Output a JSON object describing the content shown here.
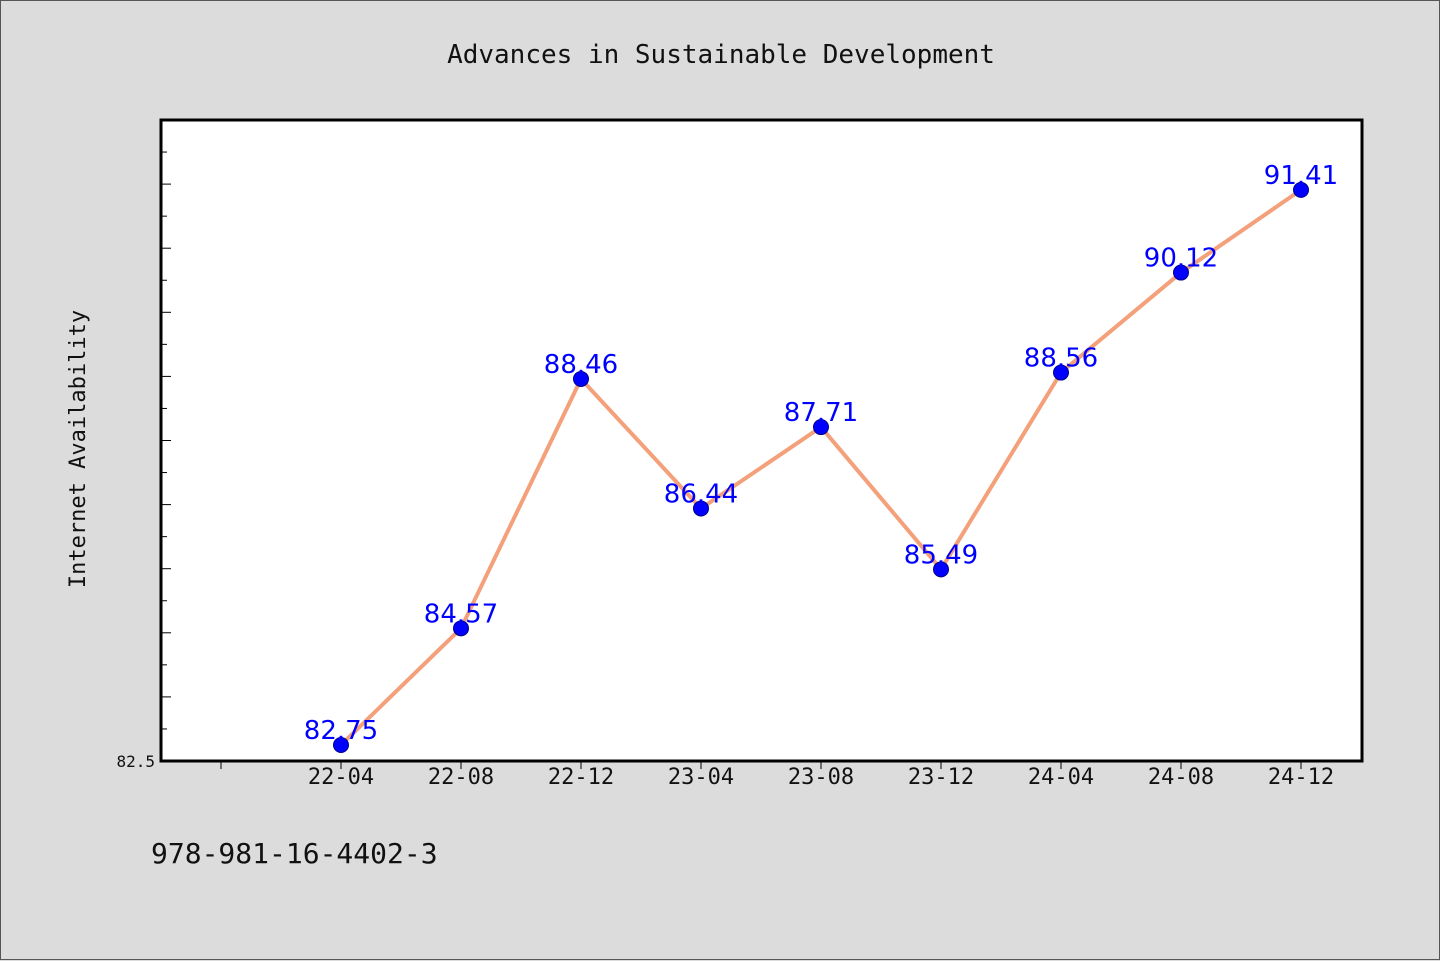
{
  "footnote": "978-981-16-4402-3",
  "chart_data": {
    "type": "line",
    "title": "Advances in Sustainable Development",
    "xlabel": "",
    "ylabel": "Internet Availability",
    "categories": [
      "22-04",
      "22-08",
      "22-12",
      "23-04",
      "23-08",
      "23-12",
      "24-04",
      "24-08",
      "24-12"
    ],
    "series": [
      {
        "values": [
          82.75,
          84.57,
          88.46,
          86.44,
          87.71,
          85.49,
          88.56,
          90.12,
          91.41
        ],
        "data_labels": [
          "82.75",
          "84.57",
          "88.46",
          "86.44",
          "87.71",
          "85.49",
          "88.56",
          "90.12",
          "91.41"
        ]
      }
    ],
    "ylim": [
      82.5,
      92.5
    ],
    "yticks_labeled": [
      "82.5"
    ],
    "grid": false,
    "legend": "none",
    "colors": {
      "line": "#f4a07a",
      "marker": "#0000ff",
      "data_label": "#0000ff",
      "plot_background": "#ffffff",
      "page_background": "#dcdcdc"
    }
  }
}
